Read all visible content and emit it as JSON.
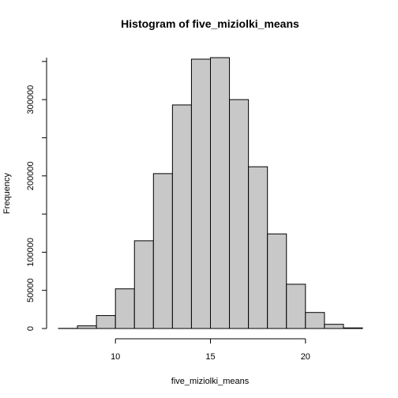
{
  "chart_data": {
    "type": "bar",
    "title": "Histogram of five_miziolki_means",
    "xlabel": "five_miziolki_means",
    "ylabel": "Frequency",
    "bin_edges": [
      7,
      8,
      9,
      10,
      11,
      12,
      13,
      14,
      15,
      16,
      17,
      18,
      19,
      20,
      21,
      22,
      23
    ],
    "values": [
      200,
      3500,
      17000,
      52000,
      115000,
      203000,
      293000,
      353000,
      355000,
      300000,
      212000,
      124000,
      58000,
      21000,
      5500,
      800
    ],
    "xlim": [
      7,
      23
    ],
    "ylim": [
      0,
      355000
    ],
    "x_ticks": [
      10,
      15,
      20
    ],
    "x_tick_labels": [
      "10",
      "15",
      "20"
    ],
    "y_ticks": [
      0,
      50000,
      100000,
      200000,
      300000
    ],
    "y_tick_labels": [
      "0",
      "50000",
      "100000",
      "200000",
      "300000"
    ],
    "grid": false,
    "bar_fill_color": "#c8c8c8",
    "bar_edge_color": "#000000"
  }
}
